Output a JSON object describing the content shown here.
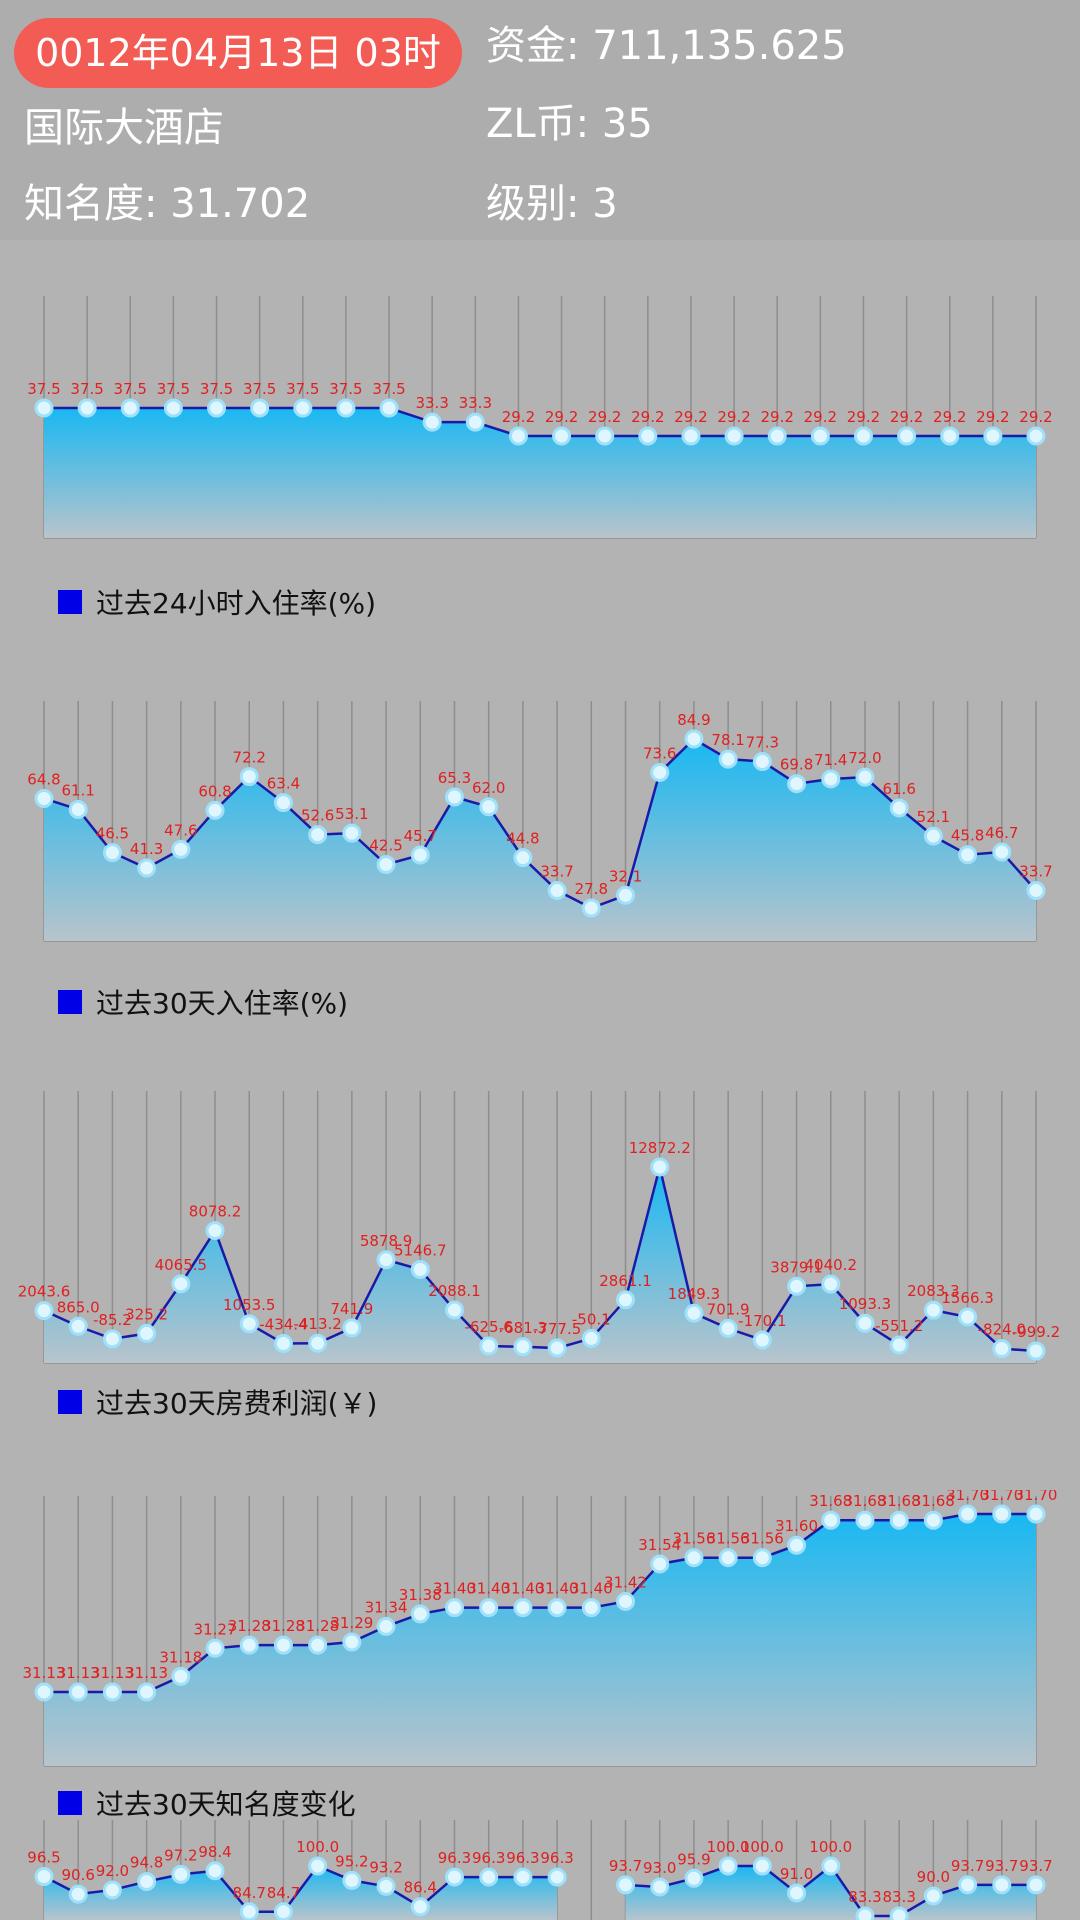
{
  "header": {
    "date": "0012年04月13日 03时",
    "hotel_name": "国际大酒店",
    "fame": "知名度: 31.702",
    "funds": "资金:  711,135.625",
    "zl_coins": "ZL币:  35",
    "level": "级别:  3"
  },
  "colors": {
    "line": "#1a1aa8",
    "label": "#e02020",
    "legend": "#0000e6",
    "fill_top": "#19b8f2",
    "fill_bottom": "#b8c4cc",
    "badge": "#f25c54"
  },
  "chart_data": [
    {
      "type": "area",
      "legend": "过去24小时入住率(%)",
      "values": [
        37.5,
        37.5,
        37.5,
        37.5,
        37.5,
        37.5,
        37.5,
        37.5,
        37.5,
        33.3,
        33.3,
        29.2,
        29.2,
        29.2,
        29.2,
        29.2,
        29.2,
        29.2,
        29.2,
        29.2,
        29.2,
        29.2,
        29.2,
        29.2
      ],
      "labels": [
        "37.5",
        "37.5",
        "37.5",
        "37.5",
        "37.5",
        "37.5",
        "37.5",
        "37.5",
        "37.5",
        "33.3",
        "33.3",
        "29.2",
        "29.2",
        "29.2",
        "29.2",
        "29.2",
        "29.2",
        "29.2",
        "29.2",
        "29.2",
        "29.2",
        "29.2",
        "29.2",
        "29.2"
      ]
    },
    {
      "type": "area",
      "legend": "过去30天入住率(%)",
      "values": [
        64.8,
        61.1,
        46.5,
        41.3,
        47.6,
        60.8,
        72.2,
        63.4,
        52.6,
        53.1,
        42.5,
        45.7,
        65.3,
        62.0,
        44.8,
        33.7,
        27.8,
        32.1,
        73.6,
        84.9,
        78.1,
        77.3,
        69.8,
        71.4,
        72.0,
        61.6,
        52.1,
        45.8,
        46.7,
        33.7
      ],
      "labels": [
        "64.8",
        "61.1",
        "46.5",
        "41.3",
        "47.6",
        "60.8",
        "72.2",
        "63.4",
        "52.6",
        "53.1",
        "42.5",
        "45.7",
        "65.3",
        "62.0",
        "44.8",
        "33.7",
        "27.8",
        "32.1",
        "73.6",
        "84.9",
        "78.1",
        "77.3",
        "69.8",
        "71.4",
        "72.0",
        "61.6",
        "52.1",
        "45.8",
        "46.7",
        "33.7"
      ]
    },
    {
      "type": "area",
      "legend": "过去30天房费利润(￥)",
      "values": [
        2043.6,
        865.0,
        -85.2,
        325.2,
        4065.5,
        8078.2,
        1053.5,
        -434.4,
        -413.2,
        741.9,
        5878.9,
        5146.7,
        2088.1,
        -625.6,
        -681.3,
        -777.5,
        -50.1,
        2861.1,
        12872.2,
        1849.3,
        701.9,
        -170.1,
        3879.1,
        4040.2,
        1093.3,
        -551.2,
        2083.3,
        1566.3,
        -824.0,
        -999.2
      ],
      "labels": [
        "2043.6",
        "865.0",
        "-85.2",
        "325.2",
        "4065.5",
        "8078.2",
        "1053.5",
        "-434.4",
        "-413.2",
        "741.9",
        "5878.9",
        "5146.7",
        "2088.1",
        "-625.6",
        "-681.3",
        "-777.5",
        "-50.1",
        "2861.1",
        "12872.2",
        "1849.3",
        "701.9",
        "-170.1",
        "3879.1",
        "4040.2",
        "1093.3",
        "-551.2",
        "2083.3",
        "1566.3",
        "-824.0",
        "-999.2"
      ]
    },
    {
      "type": "area",
      "legend": "过去30天知名度变化",
      "values": [
        31.13,
        31.13,
        31.13,
        31.13,
        31.18,
        31.27,
        31.28,
        31.28,
        31.28,
        31.29,
        31.34,
        31.38,
        31.4,
        31.4,
        31.4,
        31.4,
        31.4,
        31.42,
        31.54,
        31.56,
        31.56,
        31.56,
        31.6,
        31.68,
        31.68,
        31.68,
        31.68,
        31.7,
        31.7,
        31.7
      ],
      "labels": [
        "31.13",
        "31.13",
        "31.13",
        "31.13",
        "31.18",
        "31.27",
        "31.28",
        "31.28",
        "31.28",
        "31.29",
        "31.34",
        "31.38",
        "31.40",
        "31.40",
        "31.40",
        "31.40",
        "31.40",
        "31.42",
        "31.54",
        "31.56",
        "31.56",
        "31.56",
        "31.60",
        "31.68",
        "31.68",
        "31.68",
        "31.68",
        "31.70",
        "31.70",
        "31.70"
      ]
    },
    {
      "type": "area",
      "legend": "",
      "values": [
        96.5,
        90.6,
        92.0,
        94.8,
        97.2,
        98.4,
        84.7,
        84.7,
        100.0,
        95.2,
        93.2,
        86.4,
        96.3,
        96.3,
        96.3,
        96.3,
        null,
        93.7,
        93.0,
        95.9,
        100.0,
        100.0,
        91.0,
        100.0,
        83.3,
        83.3,
        90.0,
        93.7,
        93.7,
        93.7
      ],
      "labels": [
        "96.5",
        "90.6",
        "92.0",
        "94.8",
        "97.2",
        "98.4",
        "84.7",
        "84.7",
        "100.0",
        "95.2",
        "93.2",
        "86.4",
        "96.3",
        "96.3",
        "96.3",
        "96.3",
        "",
        "93.7",
        "93.0",
        "95.9",
        "100.0",
        "100.0",
        "91.0",
        "100.0",
        "83.3",
        "83.3",
        "90.0",
        "93.7",
        "93.7",
        "93.7"
      ]
    }
  ]
}
